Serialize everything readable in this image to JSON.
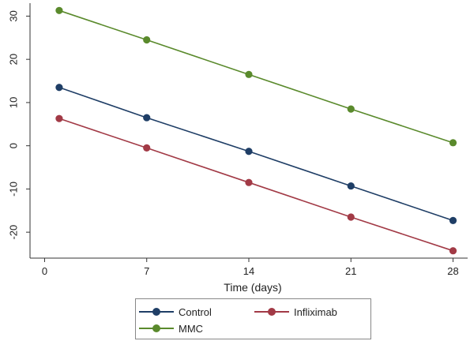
{
  "chart_data": {
    "type": "line",
    "title": "",
    "xlabel": "Time (days)",
    "ylabel": "",
    "x": [
      1,
      7,
      14,
      21,
      28
    ],
    "xticks": [
      0,
      7,
      14,
      21,
      28
    ],
    "yticks": [
      -20,
      -10,
      0,
      10,
      20,
      30
    ],
    "xlim": [
      -1,
      29
    ],
    "ylim": [
      -26,
      33
    ],
    "grid": false,
    "legend_position": "bottom",
    "series": [
      {
        "name": "Control",
        "color": "#1f3e66",
        "values": [
          13.5,
          6.5,
          -1.3,
          -9.3,
          -17.3
        ]
      },
      {
        "name": "Infliximab",
        "color": "#a23a46",
        "values": [
          6.3,
          -0.5,
          -8.5,
          -16.5,
          -24.3
        ]
      },
      {
        "name": "MMC",
        "color": "#5a8a2c",
        "values": [
          31.3,
          24.5,
          16.5,
          8.5,
          0.7
        ]
      }
    ]
  }
}
